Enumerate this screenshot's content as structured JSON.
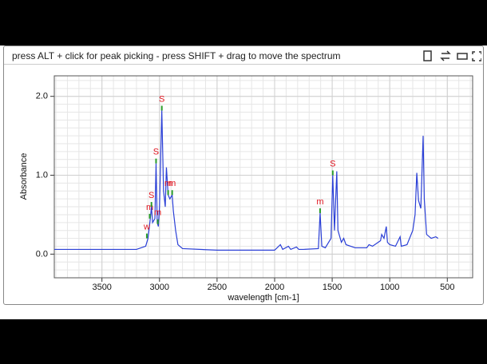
{
  "toolbar": {
    "hint": "press ALT + click for peak picking - press SHIFT + drag to move the spectrum"
  },
  "chart_data": {
    "type": "line",
    "x_label": "wavelength [cm-1]",
    "y_label": "Absorbance",
    "xlim": [
      3914,
      280
    ],
    "ylim": [
      -0.3,
      2.26
    ],
    "xticks": [
      3500,
      3000,
      2500,
      2000,
      1500,
      1000,
      500
    ],
    "yticks": [
      {
        "value": 0,
        "label": "0.0"
      },
      {
        "value": 1,
        "label": "1.0"
      },
      {
        "value": 2,
        "label": "2.0"
      }
    ],
    "grid": true,
    "series": [
      {
        "color": "#2a3fd6",
        "x": [
          3914,
          3500,
          3200,
          3120,
          3100,
          3080,
          3070,
          3060,
          3040,
          3030,
          3020,
          3010,
          3000,
          2980,
          2965,
          2950,
          2940,
          2925,
          2910,
          2890,
          2880,
          2860,
          2840,
          2800,
          2500,
          2000,
          1950,
          1930,
          1880,
          1860,
          1810,
          1790,
          1750,
          1620,
          1605,
          1590,
          1560,
          1510,
          1495,
          1480,
          1460,
          1450,
          1420,
          1400,
          1380,
          1300,
          1200,
          1180,
          1150,
          1080,
          1070,
          1050,
          1030,
          1020,
          1000,
          950,
          910,
          900,
          850,
          800,
          780,
          765,
          750,
          730,
          710,
          700,
          680,
          640,
          600,
          580
        ],
        "values": [
          0.06,
          0.06,
          0.06,
          0.1,
          0.2,
          0.45,
          0.6,
          0.4,
          0.45,
          1.15,
          0.4,
          0.35,
          0.6,
          1.82,
          0.8,
          0.6,
          1.1,
          0.75,
          0.7,
          0.75,
          0.55,
          0.3,
          0.12,
          0.07,
          0.05,
          0.05,
          0.12,
          0.06,
          0.1,
          0.06,
          0.09,
          0.06,
          0.06,
          0.07,
          0.52,
          0.1,
          0.08,
          0.2,
          1.0,
          0.3,
          1.05,
          0.3,
          0.15,
          0.2,
          0.12,
          0.08,
          0.08,
          0.12,
          0.1,
          0.17,
          0.25,
          0.2,
          0.35,
          0.15,
          0.12,
          0.1,
          0.22,
          0.1,
          0.12,
          0.3,
          0.5,
          1.03,
          0.68,
          0.58,
          1.5,
          0.7,
          0.25,
          0.2,
          0.22,
          0.2
        ]
      }
    ],
    "peaks": {
      "x": [
        3110,
        3085,
        3070,
        3030,
        3015,
        2980,
        2925,
        2890,
        1605,
        1495
      ],
      "values": [
        0.2,
        0.45,
        0.6,
        1.15,
        0.38,
        1.82,
        0.75,
        0.75,
        0.52,
        1.0
      ],
      "labels": [
        "w",
        "m",
        "S",
        "S",
        "m",
        "S",
        "m",
        "m",
        "m",
        "S"
      ]
    }
  }
}
